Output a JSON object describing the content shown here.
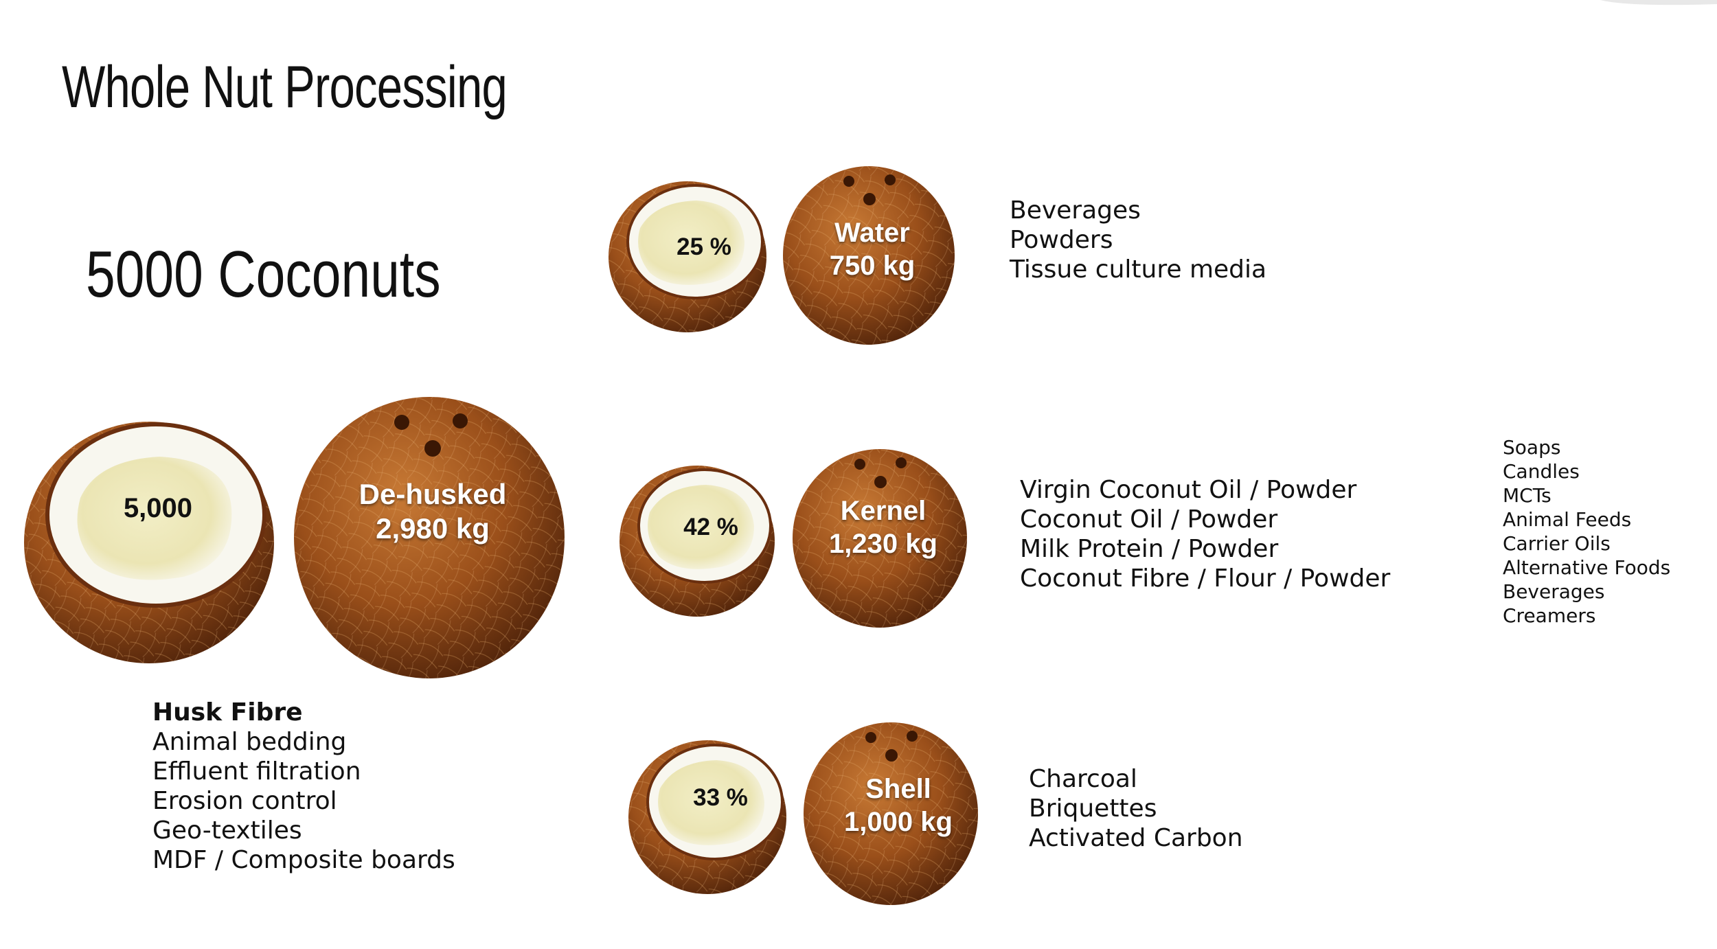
{
  "title": "Whole Nut Processing",
  "heading": "5000 Coconuts",
  "whole": {
    "count_label": "5,000",
    "dehusked_name": "De-husked",
    "dehusked_weight": "2,980 kg"
  },
  "husk": {
    "title": "Husk Fibre",
    "uses": [
      "Animal bedding",
      "Effluent filtration",
      "Erosion control",
      "Geo-textiles",
      "MDF / Composite boards"
    ]
  },
  "water": {
    "percent": "25 %",
    "name": "Water",
    "weight": "750 kg",
    "uses": [
      "Beverages",
      "Powders",
      "Tissue culture media"
    ]
  },
  "kernel": {
    "percent": "42 %",
    "name": "Kernel",
    "weight": "1,230 kg",
    "uses": [
      "Virgin Coconut Oil / Powder",
      "Coconut Oil / Powder",
      "Milk Protein / Powder",
      "Coconut Fibre / Flour / Powder"
    ],
    "oil_uses": [
      "Soaps",
      "Candles",
      "MCTs",
      "Animal Feeds",
      "Carrier Oils",
      "Alternative Foods",
      "Beverages",
      "Creamers"
    ]
  },
  "shell": {
    "percent": "33 %",
    "name": "Shell",
    "weight": "1,000 kg",
    "uses": [
      "Charcoal",
      "Briquettes",
      "Activated Carbon"
    ]
  },
  "colors": {
    "husk_light": "#b8692a",
    "husk_dark": "#5a2a0c",
    "meat": "#f4f0d8",
    "meat_inner": "#ebe6b8",
    "text": "#111111"
  }
}
